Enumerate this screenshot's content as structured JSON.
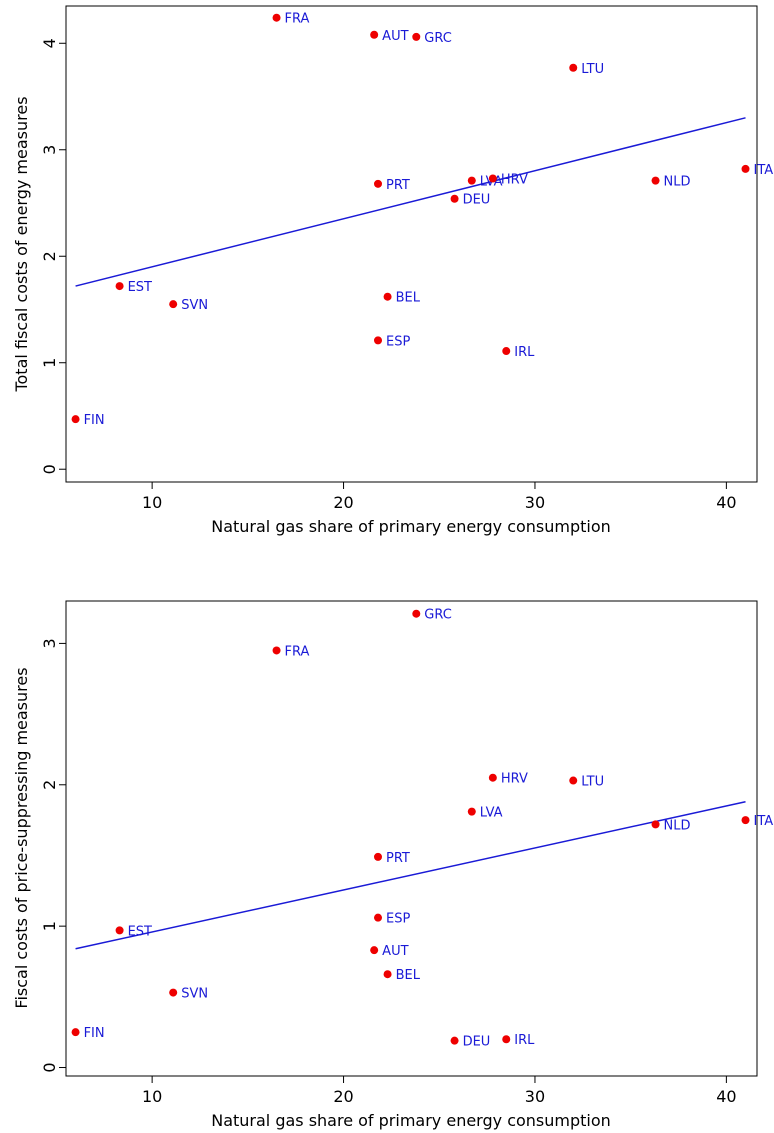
{
  "chart_data": [
    {
      "type": "scatter",
      "xlabel": "Natural gas share of primary energy consumption",
      "ylabel": "Total fiscal costs of energy measures",
      "xlim": [
        5.5,
        41.6
      ],
      "ylim": [
        -0.12,
        4.35
      ],
      "x_ticks": [
        10,
        20,
        30,
        40
      ],
      "y_ticks": [
        0,
        1,
        2,
        3,
        4
      ],
      "points": [
        {
          "label": "FRA",
          "x": 16.5,
          "y": 4.24
        },
        {
          "label": "AUT",
          "x": 21.6,
          "y": 4.08
        },
        {
          "label": "GRC",
          "x": 23.8,
          "y": 4.06
        },
        {
          "label": "LTU",
          "x": 32.0,
          "y": 3.77
        },
        {
          "label": "ITA",
          "x": 41.0,
          "y": 2.82
        },
        {
          "label": "NLD",
          "x": 36.3,
          "y": 2.71
        },
        {
          "label": "LVA",
          "x": 26.7,
          "y": 2.71
        },
        {
          "label": "HRV",
          "x": 27.8,
          "y": 2.73
        },
        {
          "label": "PRT",
          "x": 21.8,
          "y": 2.68
        },
        {
          "label": "DEU",
          "x": 25.8,
          "y": 2.54
        },
        {
          "label": "EST",
          "x": 8.3,
          "y": 1.72
        },
        {
          "label": "SVN",
          "x": 11.1,
          "y": 1.55
        },
        {
          "label": "BEL",
          "x": 22.3,
          "y": 1.62
        },
        {
          "label": "ESP",
          "x": 21.8,
          "y": 1.21
        },
        {
          "label": "IRL",
          "x": 28.5,
          "y": 1.11
        },
        {
          "label": "FIN",
          "x": 6.0,
          "y": 0.47
        }
      ],
      "fit_line": {
        "x": [
          6.0,
          41.0
        ],
        "y": [
          1.72,
          3.3
        ]
      }
    },
    {
      "type": "scatter",
      "xlabel": "Natural gas share of primary energy consumption",
      "ylabel": "Fiscal costs of price-suppressing measures",
      "xlim": [
        5.5,
        41.6
      ],
      "ylim": [
        -0.06,
        3.3
      ],
      "x_ticks": [
        10,
        20,
        30,
        40
      ],
      "y_ticks": [
        0,
        1,
        2,
        3
      ],
      "points": [
        {
          "label": "GRC",
          "x": 23.8,
          "y": 3.21
        },
        {
          "label": "FRA",
          "x": 16.5,
          "y": 2.95
        },
        {
          "label": "HRV",
          "x": 27.8,
          "y": 2.05
        },
        {
          "label": "LTU",
          "x": 32.0,
          "y": 2.03
        },
        {
          "label": "LVA",
          "x": 26.7,
          "y": 1.81
        },
        {
          "label": "ITA",
          "x": 41.0,
          "y": 1.75
        },
        {
          "label": "NLD",
          "x": 36.3,
          "y": 1.72
        },
        {
          "label": "PRT",
          "x": 21.8,
          "y": 1.49
        },
        {
          "label": "EST",
          "x": 8.3,
          "y": 0.97
        },
        {
          "label": "ESP",
          "x": 21.8,
          "y": 1.06
        },
        {
          "label": "AUT",
          "x": 21.6,
          "y": 0.83
        },
        {
          "label": "BEL",
          "x": 22.3,
          "y": 0.66
        },
        {
          "label": "SVN",
          "x": 11.1,
          "y": 0.53
        },
        {
          "label": "FIN",
          "x": 6.0,
          "y": 0.25
        },
        {
          "label": "DEU",
          "x": 25.8,
          "y": 0.19
        },
        {
          "label": "IRL",
          "x": 28.5,
          "y": 0.2
        }
      ],
      "fit_line": {
        "x": [
          6.0,
          41.0
        ],
        "y": [
          0.84,
          1.88
        ]
      }
    }
  ],
  "colors": {
    "point": "#ee0000",
    "label": "#1a1ad6",
    "fit_line": "#1a1ad6",
    "axis": "#000000"
  }
}
